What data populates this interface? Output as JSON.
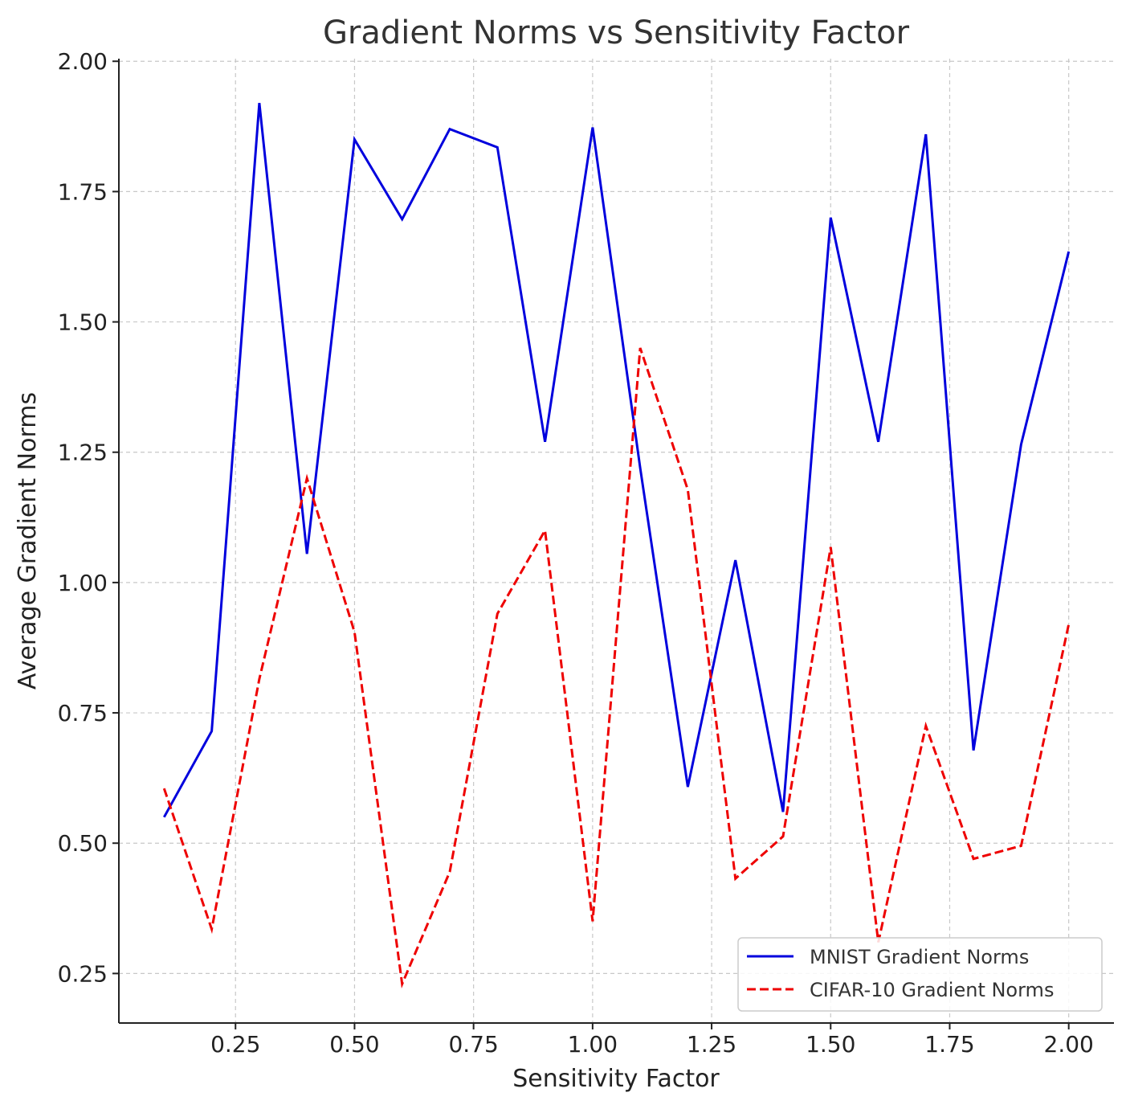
{
  "chart_data": {
    "type": "line",
    "title": "Gradient Norms vs Sensitivity Factor",
    "xlabel": "Sensitivity Factor",
    "ylabel": "Average Gradient Norms",
    "xlim": [
      0.005,
      2.095
    ],
    "ylim": [
      0.155,
      2.005
    ],
    "xticks": [
      0.25,
      0.5,
      0.75,
      1.0,
      1.25,
      1.5,
      1.75,
      2.0
    ],
    "xtick_labels": [
      "0.25",
      "0.50",
      "0.75",
      "1.00",
      "1.25",
      "1.50",
      "1.75",
      "2.00"
    ],
    "yticks": [
      0.25,
      0.5,
      0.75,
      1.0,
      1.25,
      1.5,
      1.75,
      2.0
    ],
    "ytick_labels": [
      "0.25",
      "0.50",
      "0.75",
      "1.00",
      "1.25",
      "1.50",
      "1.75",
      "2.00"
    ],
    "grid": true,
    "legend_position": "bottom-right",
    "x": [
      0.1,
      0.2,
      0.3,
      0.4,
      0.5,
      0.6,
      0.7,
      0.8,
      0.9,
      1.0,
      1.1,
      1.2,
      1.3,
      1.4,
      1.5,
      1.6,
      1.7,
      1.8,
      1.9,
      2.0
    ],
    "series": [
      {
        "name": "MNIST Gradient Norms",
        "color": "#0000dd",
        "style": "solid",
        "values": [
          0.55,
          0.715,
          1.92,
          1.055,
          1.85,
          1.697,
          1.87,
          1.835,
          1.27,
          1.873,
          1.22,
          0.608,
          1.043,
          0.56,
          1.7,
          1.27,
          1.86,
          0.678,
          1.265,
          1.635
        ]
      },
      {
        "name": "CIFAR-10 Gradient Norms",
        "color": "#ee0000",
        "style": "dashed",
        "values": [
          0.605,
          0.335,
          0.815,
          1.2,
          0.905,
          0.23,
          0.445,
          0.94,
          1.1,
          0.35,
          1.45,
          1.178,
          0.432,
          0.513,
          1.068,
          0.31,
          0.725,
          0.47,
          0.495,
          0.92
        ]
      }
    ]
  }
}
